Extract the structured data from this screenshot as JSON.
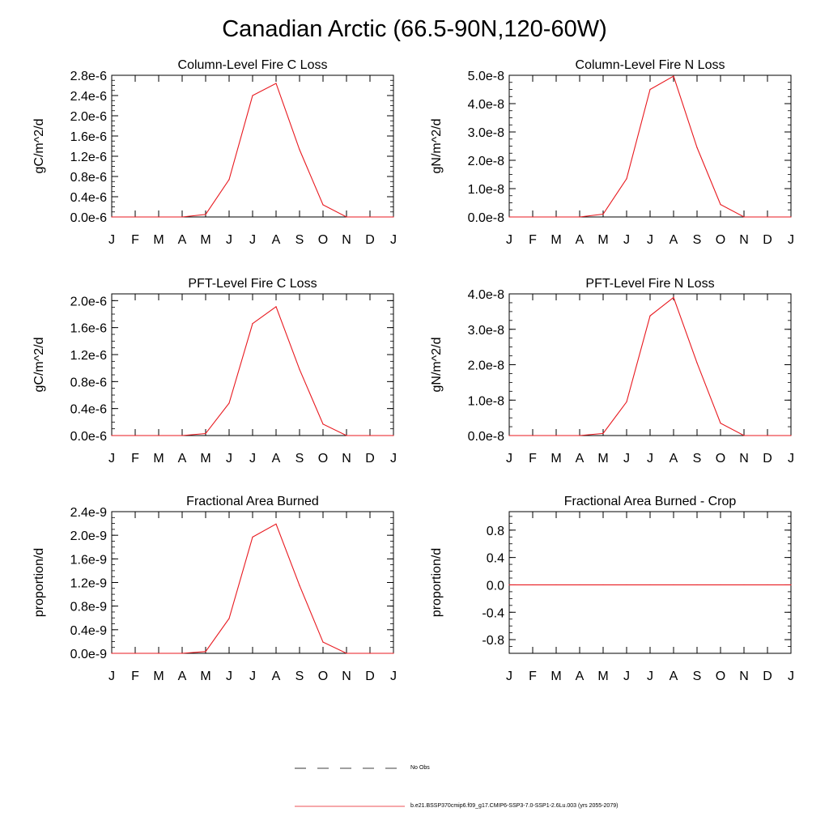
{
  "page": {
    "title": "Canadian Arctic (66.5-90N,120-60W)"
  },
  "months": [
    "J",
    "F",
    "M",
    "A",
    "M",
    "J",
    "J",
    "A",
    "S",
    "O",
    "N",
    "D",
    "J"
  ],
  "colors": {
    "model": "#e8191f",
    "obs": "#000000"
  },
  "legend": {
    "obs": {
      "label": "No Obs",
      "style": "dashed"
    },
    "model": {
      "label": "b.e21.BSSP370cmip6.f09_g17.CMIP6-SSP3-7.0-SSP1-2.6Lu.003 (yrs 2055-2079)",
      "style": "solid"
    }
  },
  "chart_data": [
    {
      "type": "line",
      "title": "Column-Level Fire C Loss",
      "ylabel": "gC/m^2/d",
      "ylim": [
        0,
        2.8e-06
      ],
      "yticks": [
        0,
        4e-07,
        8e-07,
        1.2e-06,
        1.6e-06,
        2e-06,
        2.4e-06,
        2.8e-06
      ],
      "ytick_labels": [
        "0.0e-6",
        "0.4e-6",
        "0.8e-6",
        "1.2e-6",
        "1.6e-6",
        "2.0e-6",
        "2.4e-6",
        "2.8e-6"
      ],
      "series": [
        {
          "values": [
            0,
            0,
            0,
            0,
            5e-08,
            7.4e-07,
            2.4e-06,
            2.64e-06,
            1.33e-06,
            2.4e-07,
            0,
            0,
            0
          ]
        }
      ]
    },
    {
      "type": "line",
      "title": "Column-Level Fire N Loss",
      "ylabel": "gN/m^2/d",
      "ylim": [
        0,
        5e-08
      ],
      "yticks": [
        0,
        1e-08,
        2e-08,
        3e-08,
        4e-08,
        5e-08
      ],
      "ytick_labels": [
        "0.0e-8",
        "1.0e-8",
        "2.0e-8",
        "3.0e-8",
        "4.0e-8",
        "5.0e-8"
      ],
      "series": [
        {
          "values": [
            0,
            0,
            0,
            0,
            1e-09,
            1.35e-08,
            4.5e-08,
            4.97e-08,
            2.45e-08,
            4.4e-09,
            0,
            0,
            0
          ]
        }
      ]
    },
    {
      "type": "line",
      "title": "PFT-Level Fire C Loss",
      "ylabel": "gC/m^2/d",
      "ylim": [
        0,
        2.1e-06
      ],
      "yticks": [
        0,
        4e-07,
        8e-07,
        1.2e-06,
        1.6e-06,
        2e-06
      ],
      "ytick_labels": [
        "0.0e-6",
        "0.4e-6",
        "0.8e-6",
        "1.2e-6",
        "1.6e-6",
        "2.0e-6"
      ],
      "series": [
        {
          "values": [
            0,
            0,
            0,
            0,
            3e-08,
            4.8e-07,
            1.66e-06,
            1.91e-06,
            9.8e-07,
            1.7e-07,
            0,
            0,
            0
          ]
        }
      ]
    },
    {
      "type": "line",
      "title": "PFT-Level Fire N Loss",
      "ylabel": "gN/m^2/d",
      "ylim": [
        0,
        4e-08
      ],
      "yticks": [
        0,
        1e-08,
        2e-08,
        3e-08,
        4e-08
      ],
      "ytick_labels": [
        "0.0e-8",
        "1.0e-8",
        "2.0e-8",
        "3.0e-8",
        "4.0e-8"
      ],
      "series": [
        {
          "values": [
            0,
            0,
            0,
            0,
            6e-10,
            9.5e-09,
            3.38e-08,
            3.9e-08,
            2.05e-08,
            3.5e-09,
            0,
            0,
            0
          ]
        }
      ]
    },
    {
      "type": "line",
      "title": "Fractional Area Burned",
      "ylabel": "proportion/d",
      "ylim": [
        0,
        2.4e-09
      ],
      "yticks": [
        0,
        4e-10,
        8e-10,
        1.2e-09,
        1.6e-09,
        2e-09,
        2.4e-09
      ],
      "ytick_labels": [
        "0.0e-9",
        "0.4e-9",
        "0.8e-9",
        "1.2e-9",
        "1.6e-9",
        "2.0e-9",
        "2.4e-9"
      ],
      "series": [
        {
          "values": [
            0,
            0,
            0,
            0,
            3e-11,
            5.9e-10,
            1.97e-09,
            2.19e-09,
            1.15e-09,
            1.9e-10,
            0,
            0,
            0
          ]
        }
      ]
    },
    {
      "type": "line",
      "title": "Fractional Area Burned - Crop",
      "ylabel": "proportion/d",
      "ylim": [
        -1.0,
        1.07
      ],
      "yticks": [
        -0.8,
        -0.4,
        0.0,
        0.4,
        0.8
      ],
      "ytick_labels": [
        "-0.8",
        "-0.4",
        "0.0",
        "0.4",
        "0.8"
      ],
      "series": [
        {
          "values": [
            0,
            0,
            0,
            0,
            0,
            0,
            0,
            0,
            0,
            0,
            0,
            0,
            0
          ]
        }
      ]
    }
  ]
}
